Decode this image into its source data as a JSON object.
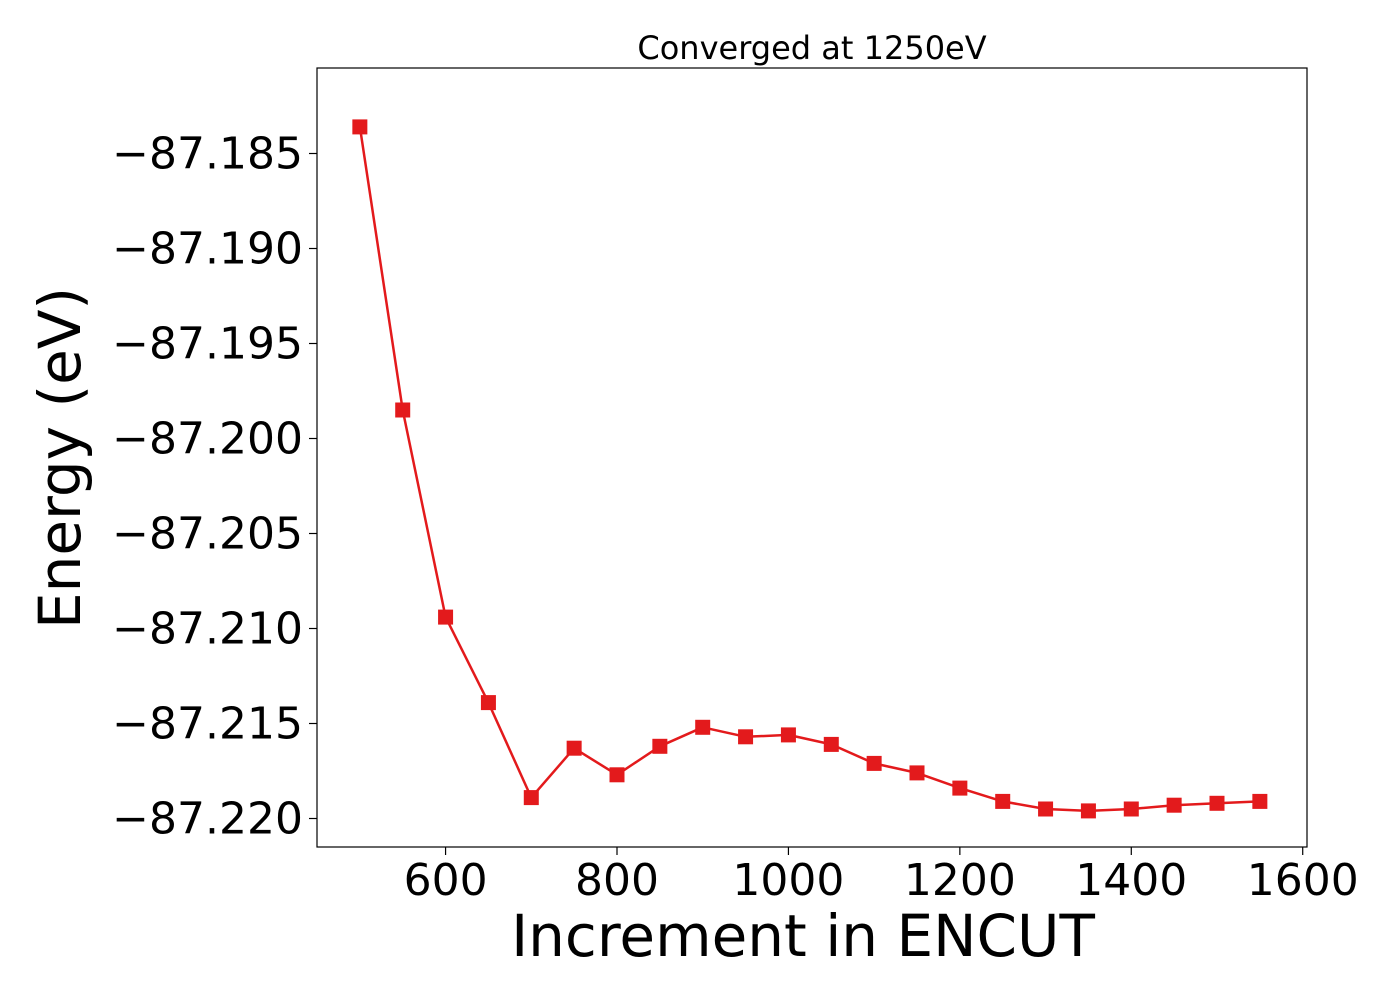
{
  "chart_data": {
    "type": "line",
    "title": "Converged at 1250eV",
    "xlabel": "Increment in ENCUT",
    "ylabel": "Energy (eV)",
    "xlim": [
      450,
      1605
    ],
    "ylim": [
      -87.2215,
      -87.1805
    ],
    "xticks": [
      600,
      800,
      1000,
      1200,
      1400,
      1600
    ],
    "yticks": [
      -87.185,
      -87.19,
      -87.195,
      -87.2,
      -87.205,
      -87.21,
      -87.215,
      -87.22
    ],
    "ytick_labels": [
      "−87.185",
      "−87.190",
      "−87.195",
      "−87.200",
      "−87.205",
      "−87.210",
      "−87.215",
      "−87.220"
    ],
    "grid": false,
    "series": [
      {
        "color": "#e31a1c",
        "marker": "square",
        "x": [
          500,
          550,
          600,
          650,
          700,
          750,
          800,
          850,
          900,
          950,
          1000,
          1050,
          1100,
          1150,
          1200,
          1250,
          1300,
          1350,
          1400,
          1450,
          1500,
          1550
        ],
        "y": [
          -87.1836,
          -87.1985,
          -87.2094,
          -87.2139,
          -87.2189,
          -87.2163,
          -87.2177,
          -87.2162,
          -87.2152,
          -87.2157,
          -87.2156,
          -87.2161,
          -87.2171,
          -87.2176,
          -87.2184,
          -87.2191,
          -87.2195,
          -87.2196,
          -87.2195,
          -87.2193,
          -87.2192,
          -87.2191
        ]
      }
    ]
  }
}
